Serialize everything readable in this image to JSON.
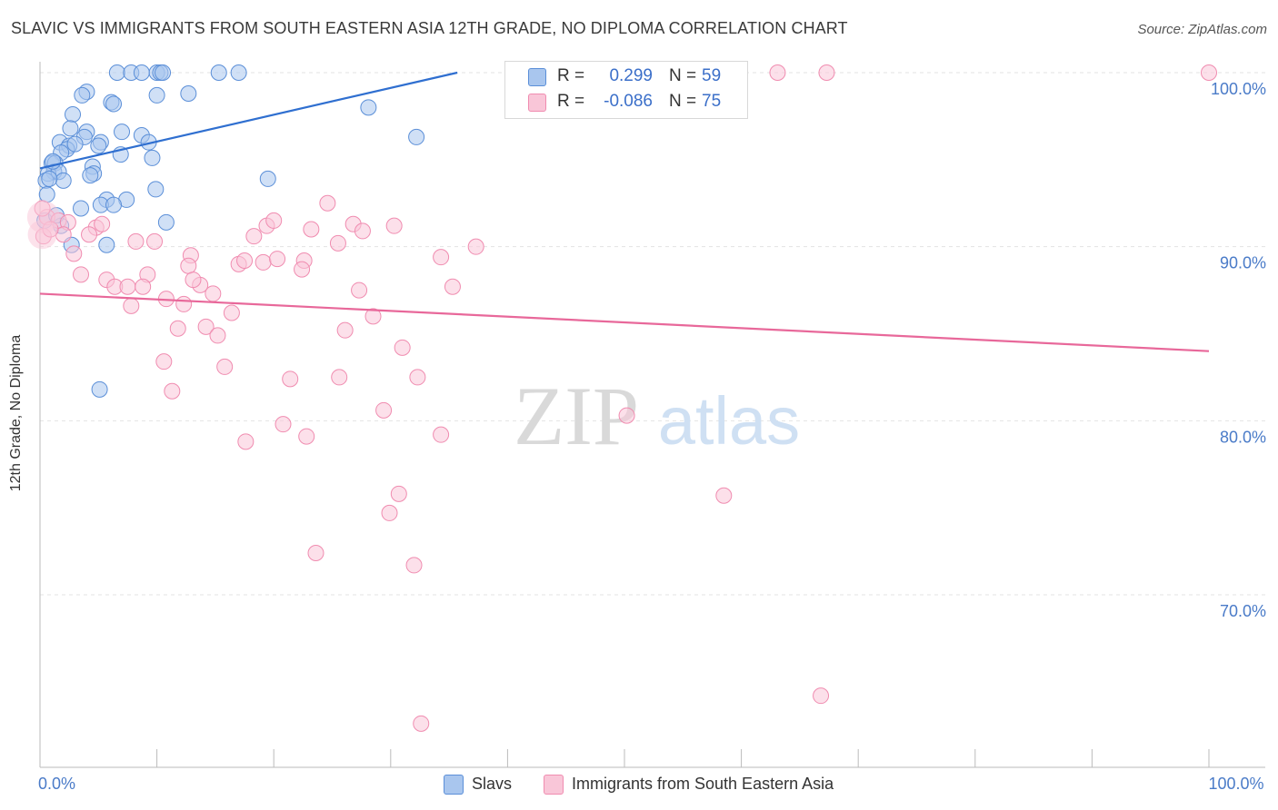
{
  "title": "SLAVIC VS IMMIGRANTS FROM SOUTH EASTERN ASIA 12TH GRADE, NO DIPLOMA CORRELATION CHART",
  "source": "Source: ZipAtlas.com",
  "watermark": {
    "zip": "ZIP",
    "atlas": "atlas"
  },
  "stats": [
    {
      "r_label": "R =",
      "r_value": "0.299",
      "n_label": "N =",
      "n_value": "59",
      "color": "#5b8fd8"
    },
    {
      "r_label": "R =",
      "r_value": "-0.086",
      "n_label": "N =",
      "n_value": "75",
      "color": "#f08cb0"
    }
  ],
  "chart_data": {
    "type": "scatter",
    "title": "SLAVIC VS IMMIGRANTS FROM SOUTH EASTERN ASIA 12TH GRADE, NO DIPLOMA CORRELATION CHART",
    "xlabel": "",
    "ylabel": "12th Grade, No Diploma",
    "xlim": [
      0,
      100
    ],
    "ylim": [
      60,
      101.5
    ],
    "x_tick_labels": [
      {
        "value": 0,
        "label": "0.0%"
      },
      {
        "value": 100,
        "label": "100.0%"
      }
    ],
    "y_tick_labels": [
      {
        "value": 100,
        "label": "100.0%"
      },
      {
        "value": 90,
        "label": "90.0%"
      },
      {
        "value": 80,
        "label": "80.0%"
      },
      {
        "value": 70,
        "label": "70.0%"
      }
    ],
    "legend_position": "bottom-center",
    "series": [
      {
        "name": "Slavs",
        "color": "#5b8fd8",
        "fill": "#a9c6ee",
        "trend": {
          "x": [
            0,
            35.7
          ],
          "y": [
            94.5,
            100
          ]
        },
        "points": [
          [
            6.6,
            100
          ],
          [
            7.8,
            100
          ],
          [
            8.7,
            100
          ],
          [
            10.0,
            100
          ],
          [
            10.3,
            100
          ],
          [
            10.5,
            100
          ],
          [
            15.3,
            100
          ],
          [
            17.0,
            100
          ],
          [
            4.0,
            98.9
          ],
          [
            3.6,
            98.7
          ],
          [
            6.1,
            98.3
          ],
          [
            6.3,
            98.2
          ],
          [
            10.0,
            98.7
          ],
          [
            12.7,
            98.8
          ],
          [
            28.1,
            98.0
          ],
          [
            2.8,
            97.6
          ],
          [
            2.6,
            96.8
          ],
          [
            4.0,
            96.6
          ],
          [
            3.8,
            96.3
          ],
          [
            7.0,
            96.6
          ],
          [
            8.7,
            96.4
          ],
          [
            9.3,
            96.0
          ],
          [
            32.2,
            96.3
          ],
          [
            1.7,
            96.0
          ],
          [
            2.5,
            95.8
          ],
          [
            2.3,
            95.6
          ],
          [
            5.2,
            96.0
          ],
          [
            5.0,
            95.8
          ],
          [
            1.8,
            95.4
          ],
          [
            6.9,
            95.3
          ],
          [
            9.6,
            95.1
          ],
          [
            1.0,
            94.8
          ],
          [
            1.3,
            94.8
          ],
          [
            1.2,
            94.3
          ],
          [
            0.7,
            94.2
          ],
          [
            1.6,
            94.3
          ],
          [
            4.5,
            94.6
          ],
          [
            4.6,
            94.2
          ],
          [
            4.3,
            94.1
          ],
          [
            2.0,
            93.8
          ],
          [
            0.5,
            93.8
          ],
          [
            19.5,
            93.9
          ],
          [
            9.9,
            93.3
          ],
          [
            0.6,
            93.0
          ],
          [
            5.7,
            92.7
          ],
          [
            7.4,
            92.7
          ],
          [
            5.2,
            92.4
          ],
          [
            6.3,
            92.4
          ],
          [
            3.5,
            92.2
          ],
          [
            0.4,
            91.5
          ],
          [
            10.8,
            91.4
          ],
          [
            1.8,
            91.2
          ],
          [
            2.7,
            90.1
          ],
          [
            5.7,
            90.1
          ],
          [
            5.1,
            81.8
          ],
          [
            1.1,
            94.9
          ],
          [
            3.0,
            95.9
          ],
          [
            0.8,
            93.9
          ],
          [
            1.4,
            91.8
          ]
        ]
      },
      {
        "name": "Immigrants from South Eastern Asia",
        "color": "#f08cb0",
        "fill": "#f9c6d8",
        "trend": {
          "x": [
            0,
            100
          ],
          "y": [
            87.3,
            84.0
          ]
        },
        "points": [
          [
            63.1,
            100
          ],
          [
            67.3,
            100
          ],
          [
            100,
            100
          ],
          [
            24.6,
            92.5
          ],
          [
            0.6,
            91.7
          ],
          [
            1.6,
            91.5
          ],
          [
            2.4,
            91.4
          ],
          [
            4.8,
            91.1
          ],
          [
            5.3,
            91.3
          ],
          [
            9.8,
            90.3
          ],
          [
            19.4,
            91.2
          ],
          [
            20.0,
            91.5
          ],
          [
            23.2,
            91.0
          ],
          [
            26.8,
            91.3
          ],
          [
            27.6,
            90.9
          ],
          [
            30.3,
            91.2
          ],
          [
            0.3,
            90.6
          ],
          [
            2.0,
            90.7
          ],
          [
            4.2,
            90.7
          ],
          [
            8.2,
            90.3
          ],
          [
            18.3,
            90.6
          ],
          [
            25.5,
            90.2
          ],
          [
            37.3,
            90.0
          ],
          [
            12.9,
            89.5
          ],
          [
            17.0,
            89.0
          ],
          [
            17.5,
            89.2
          ],
          [
            19.1,
            89.1
          ],
          [
            20.3,
            89.3
          ],
          [
            22.6,
            89.2
          ],
          [
            34.3,
            89.4
          ],
          [
            12.7,
            88.9
          ],
          [
            3.5,
            88.4
          ],
          [
            5.7,
            88.1
          ],
          [
            9.2,
            88.4
          ],
          [
            22.4,
            88.7
          ],
          [
            6.4,
            87.7
          ],
          [
            7.5,
            87.7
          ],
          [
            8.8,
            87.7
          ],
          [
            13.7,
            87.8
          ],
          [
            14.8,
            87.3
          ],
          [
            27.3,
            87.5
          ],
          [
            35.3,
            87.7
          ],
          [
            10.8,
            87.0
          ],
          [
            7.8,
            86.6
          ],
          [
            12.3,
            86.7
          ],
          [
            16.4,
            86.2
          ],
          [
            28.5,
            86.0
          ],
          [
            11.8,
            85.3
          ],
          [
            14.2,
            85.4
          ],
          [
            15.2,
            84.9
          ],
          [
            26.1,
            85.2
          ],
          [
            31.0,
            84.2
          ],
          [
            10.6,
            83.4
          ],
          [
            15.8,
            83.1
          ],
          [
            21.4,
            82.4
          ],
          [
            25.6,
            82.5
          ],
          [
            32.3,
            82.5
          ],
          [
            11.3,
            81.7
          ],
          [
            29.4,
            80.6
          ],
          [
            50.2,
            80.3
          ],
          [
            20.8,
            79.8
          ],
          [
            22.8,
            79.1
          ],
          [
            34.3,
            79.2
          ],
          [
            17.6,
            78.8
          ],
          [
            58.5,
            75.7
          ],
          [
            30.7,
            75.8
          ],
          [
            29.9,
            74.7
          ],
          [
            23.6,
            72.4
          ],
          [
            32.0,
            71.7
          ],
          [
            66.8,
            64.2
          ],
          [
            32.6,
            62.6
          ],
          [
            0.2,
            92.2
          ],
          [
            0.9,
            91.0
          ],
          [
            2.9,
            89.6
          ],
          [
            13.1,
            88.1
          ]
        ]
      }
    ]
  },
  "legend": [
    {
      "label": "Slavs",
      "color": "#5b8fd8",
      "fill": "#a9c6ee"
    },
    {
      "label": "Immigrants from South Eastern Asia",
      "color": "#f08cb0",
      "fill": "#f9c6d8"
    }
  ]
}
